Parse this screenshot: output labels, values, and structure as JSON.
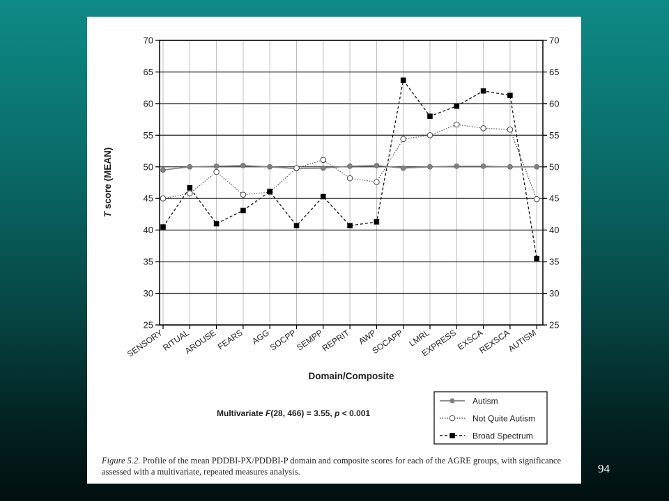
{
  "page_number": "94",
  "caption": {
    "label": "Figure 5.2.",
    "text": "Profile of the mean PDDBI-PX/PDDBI-P domain and composite scores for each of the AGRE groups, with significance assessed with a multivariate, repeated measures analysis."
  },
  "stat_annotation": {
    "prefix": "Multivariate ",
    "F": "F",
    "middle": "(28, 466) = 3.55, ",
    "p": "p",
    "suffix": " < 0.001"
  },
  "chart_data": {
    "type": "line",
    "xlabel": "Domain/Composite",
    "ylabel_italic": "T",
    "ylabel_rest": " score (MEAN)",
    "ylim": [
      25,
      70
    ],
    "yticks": [
      25,
      30,
      35,
      40,
      45,
      50,
      55,
      60,
      65,
      70
    ],
    "grid": true,
    "legend_position": "bottom-right",
    "categories": [
      "SENSORY",
      "RITUAL",
      "AROUSE",
      "FEARS",
      "AGG",
      "SOCPP",
      "SEMPP",
      "REPRIT",
      "AWP",
      "SOCAPP",
      "LMRL",
      "EXPRESS",
      "EXSCA",
      "REXSCA",
      "AUTISM"
    ],
    "series": [
      {
        "name": "Autism",
        "style": "solid",
        "marker": "filled-circle",
        "color": "#808080",
        "values": [
          49.5,
          50.0,
          50.1,
          50.2,
          50.0,
          49.7,
          49.8,
          50.1,
          50.2,
          49.8,
          50.0,
          50.1,
          50.1,
          50.0,
          50.0
        ]
      },
      {
        "name": "Not Quite Autism",
        "style": "dotted",
        "marker": "open-circle",
        "color": "#555555",
        "values": [
          45.0,
          45.8,
          49.2,
          45.6,
          46.0,
          49.8,
          51.1,
          48.2,
          47.6,
          54.4,
          55.0,
          56.7,
          56.1,
          55.9,
          44.9
        ]
      },
      {
        "name": "Broad Spectrum",
        "style": "dashed",
        "marker": "filled-square",
        "color": "#111111",
        "values": [
          40.5,
          46.7,
          41.0,
          43.1,
          46.1,
          40.7,
          45.3,
          40.7,
          41.3,
          63.7,
          58.0,
          59.6,
          62.0,
          61.3,
          35.5
        ]
      }
    ]
  }
}
